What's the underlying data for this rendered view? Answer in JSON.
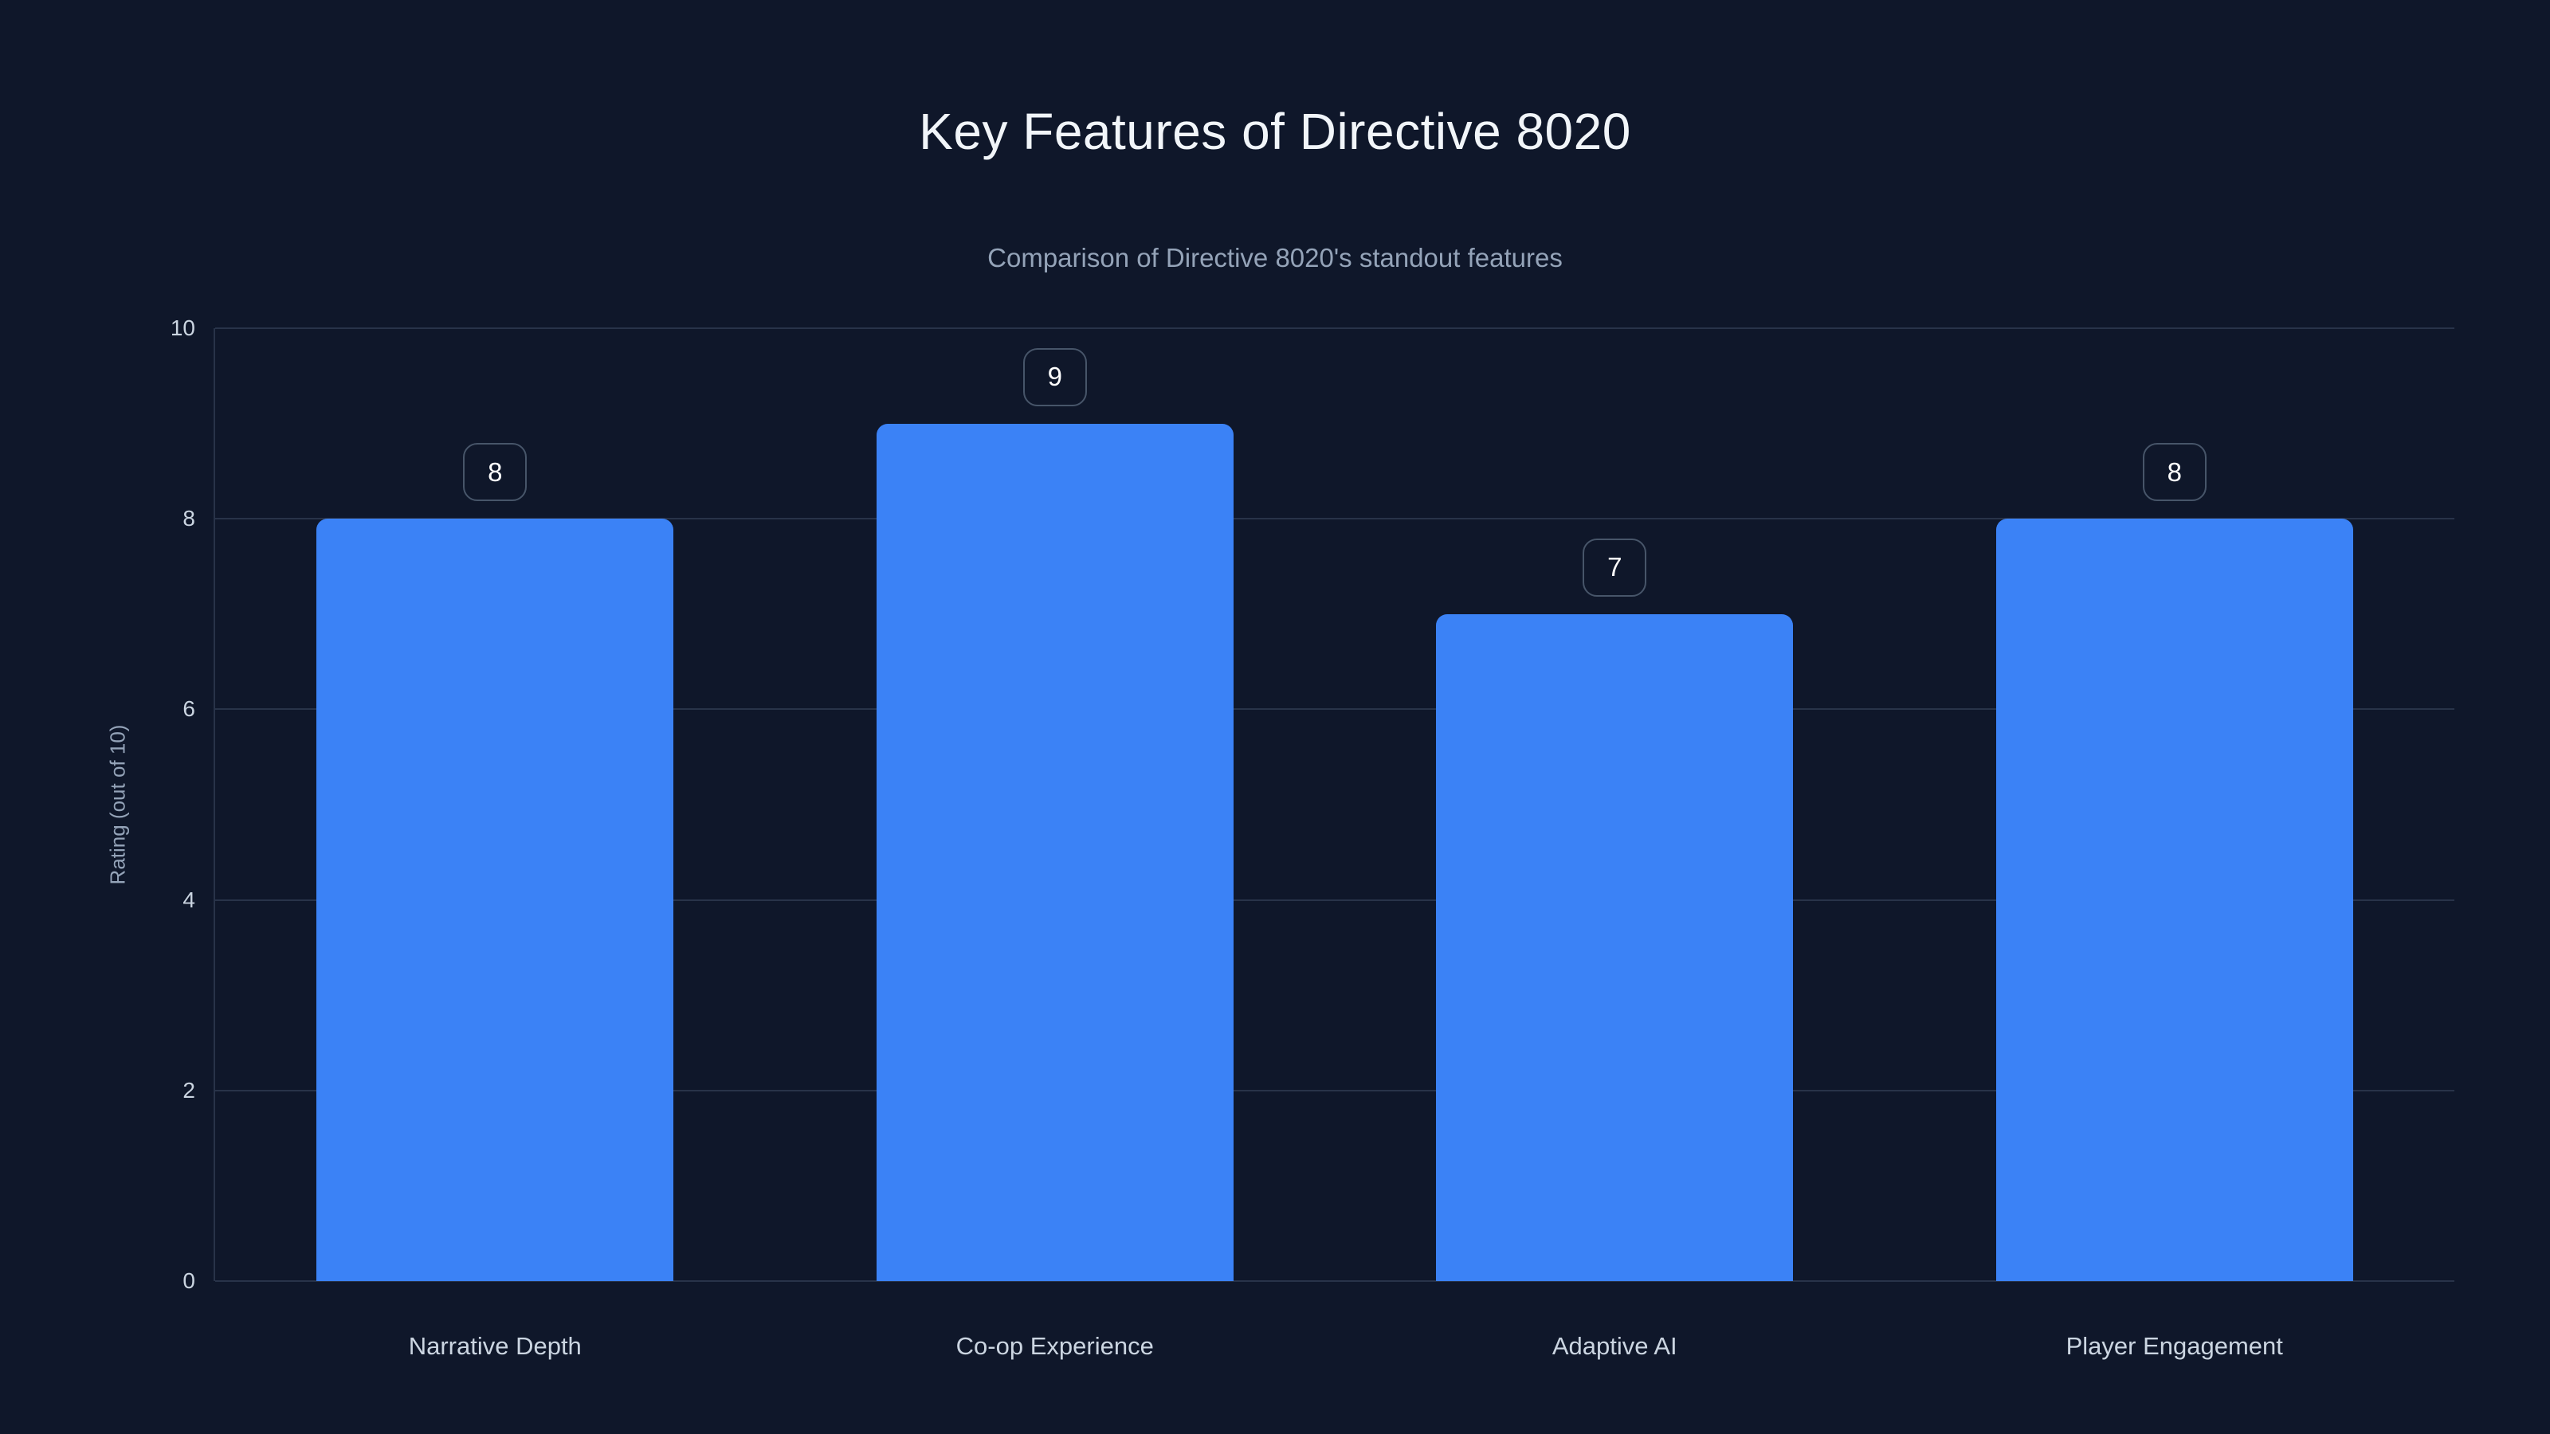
{
  "chart": {
    "title": "Key Features of Directive 8020",
    "subtitle": "Comparison of Directive 8020's standout features",
    "ylabel": "Rating (out of 10)"
  },
  "chart_data": {
    "type": "bar",
    "title": "Key Features of Directive 8020",
    "subtitle": "Comparison of Directive 8020's standout features",
    "categories": [
      "Narrative Depth",
      "Co-op Experience",
      "Adaptive AI",
      "Player Engagement"
    ],
    "values": [
      8,
      9,
      7,
      8
    ],
    "value_labels": [
      "8",
      "9",
      "7",
      "8"
    ],
    "xlabel": "",
    "ylabel": "Rating (out of 10)",
    "ylim": [
      0,
      10
    ],
    "yticks": [
      0,
      2,
      4,
      6,
      8,
      10
    ],
    "grid": "horizontal",
    "legend": "none",
    "colors": {
      "background": "#0f172a",
      "bar": "#3b82f6",
      "gridline": "#283349",
      "title_text": "#f1f5f9",
      "subtitle_text": "#94a3b8",
      "tick_text": "#cbd5e1",
      "category_text": "#cbd5e1",
      "value_text": "#ffffff",
      "value_box_border": "#475569"
    }
  }
}
